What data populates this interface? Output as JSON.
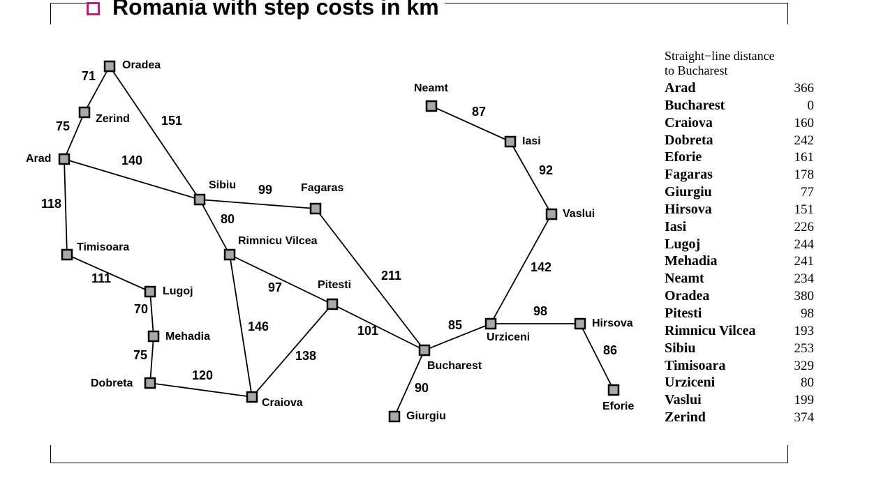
{
  "slide": {
    "title": "Romania with step costs in km",
    "bullet_color": "#c8187a"
  },
  "graph": {
    "cities": [
      {
        "id": "arad",
        "name": "Arad"
      },
      {
        "id": "zerind",
        "name": "Zerind"
      },
      {
        "id": "oradea",
        "name": "Oradea"
      },
      {
        "id": "sibiu",
        "name": "Sibiu"
      },
      {
        "id": "timisoara",
        "name": "Timisoara"
      },
      {
        "id": "lugoj",
        "name": "Lugoj"
      },
      {
        "id": "mehadia",
        "name": "Mehadia"
      },
      {
        "id": "dobreta",
        "name": "Dobreta"
      },
      {
        "id": "craiova",
        "name": "Craiova"
      },
      {
        "id": "rimnicu",
        "name": "Rimnicu Vilcea"
      },
      {
        "id": "fagaras",
        "name": "Fagaras"
      },
      {
        "id": "pitesti",
        "name": "Pitesti"
      },
      {
        "id": "bucharest",
        "name": "Bucharest"
      },
      {
        "id": "giurgiu",
        "name": "Giurgiu"
      },
      {
        "id": "urziceni",
        "name": "Urziceni"
      },
      {
        "id": "hirsova",
        "name": "Hirsova"
      },
      {
        "id": "eforie",
        "name": "Eforie"
      },
      {
        "id": "vaslui",
        "name": "Vaslui"
      },
      {
        "id": "iasi",
        "name": "Iasi"
      },
      {
        "id": "neamt",
        "name": "Neamt"
      }
    ],
    "edges": [
      {
        "from": "oradea",
        "to": "zerind",
        "cost": "71"
      },
      {
        "from": "zerind",
        "to": "arad",
        "cost": "75"
      },
      {
        "from": "oradea",
        "to": "sibiu",
        "cost": "151"
      },
      {
        "from": "arad",
        "to": "sibiu",
        "cost": "140"
      },
      {
        "from": "arad",
        "to": "timisoara",
        "cost": "118"
      },
      {
        "from": "timisoara",
        "to": "lugoj",
        "cost": "111"
      },
      {
        "from": "lugoj",
        "to": "mehadia",
        "cost": "70"
      },
      {
        "from": "mehadia",
        "to": "dobreta",
        "cost": "75"
      },
      {
        "from": "dobreta",
        "to": "craiova",
        "cost": "120"
      },
      {
        "from": "sibiu",
        "to": "fagaras",
        "cost": "99"
      },
      {
        "from": "sibiu",
        "to": "rimnicu",
        "cost": "80"
      },
      {
        "from": "rimnicu",
        "to": "craiova",
        "cost": "146"
      },
      {
        "from": "rimnicu",
        "to": "pitesti",
        "cost": "97"
      },
      {
        "from": "craiova",
        "to": "pitesti",
        "cost": "138"
      },
      {
        "from": "fagaras",
        "to": "bucharest",
        "cost": "211"
      },
      {
        "from": "pitesti",
        "to": "bucharest",
        "cost": "101"
      },
      {
        "from": "bucharest",
        "to": "giurgiu",
        "cost": "90"
      },
      {
        "from": "bucharest",
        "to": "urziceni",
        "cost": "85"
      },
      {
        "from": "urziceni",
        "to": "hirsova",
        "cost": "98"
      },
      {
        "from": "hirsova",
        "to": "eforie",
        "cost": "86"
      },
      {
        "from": "urziceni",
        "to": "vaslui",
        "cost": "142"
      },
      {
        "from": "vaslui",
        "to": "iasi",
        "cost": "92"
      },
      {
        "from": "iasi",
        "to": "neamt",
        "cost": "87"
      }
    ]
  },
  "straight_line_table": {
    "heading_line1": "Straight−line distance",
    "heading_line2": "to Bucharest",
    "rows": [
      {
        "city": "Arad",
        "distance": "366"
      },
      {
        "city": "Bucharest",
        "distance": "0"
      },
      {
        "city": "Craiova",
        "distance": "160"
      },
      {
        "city": "Dobreta",
        "distance": "242"
      },
      {
        "city": "Eforie",
        "distance": "161"
      },
      {
        "city": "Fagaras",
        "distance": "178"
      },
      {
        "city": "Giurgiu",
        "distance": "77"
      },
      {
        "city": "Hirsova",
        "distance": "151"
      },
      {
        "city": "Iasi",
        "distance": "226"
      },
      {
        "city": "Lugoj",
        "distance": "244"
      },
      {
        "city": "Mehadia",
        "distance": "241"
      },
      {
        "city": "Neamt",
        "distance": "234"
      },
      {
        "city": "Oradea",
        "distance": "380"
      },
      {
        "city": "Pitesti",
        "distance": "98"
      },
      {
        "city": "Rimnicu Vilcea",
        "distance": "193"
      },
      {
        "city": "Sibiu",
        "distance": "253"
      },
      {
        "city": "Timisoara",
        "distance": "329"
      },
      {
        "city": "Urziceni",
        "distance": "80"
      },
      {
        "city": "Vaslui",
        "distance": "199"
      },
      {
        "city": "Zerind",
        "distance": "374"
      }
    ]
  }
}
